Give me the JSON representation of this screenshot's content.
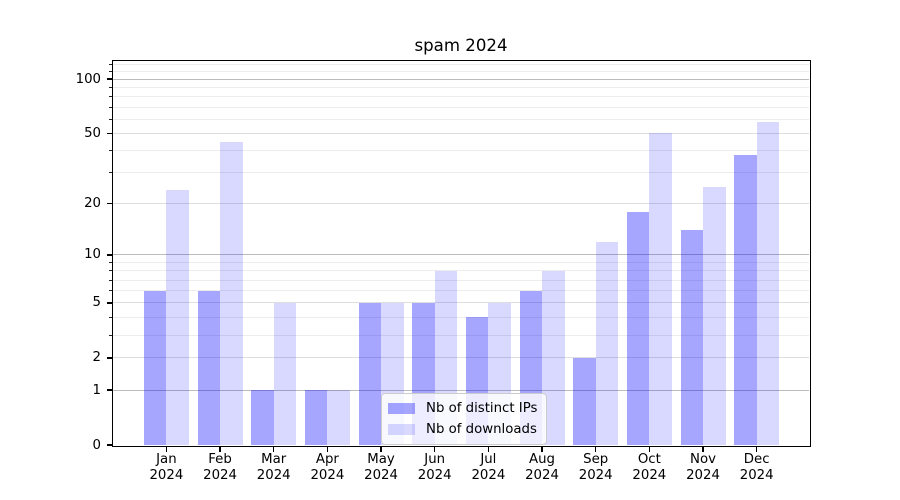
{
  "title": "spam 2024",
  "chart_data": {
    "type": "bar",
    "title": "spam 2024",
    "categories": [
      "Jan",
      "Feb",
      "Mar",
      "Apr",
      "May",
      "Jun",
      "Jul",
      "Aug",
      "Sep",
      "Oct",
      "Nov",
      "Dec"
    ],
    "year_label": "2024",
    "series": [
      {
        "name": "Nb of distinct IPs",
        "color": "rgba(0,0,255,0.35)",
        "color_hex": "#a6a6ff",
        "values": [
          6,
          6,
          1,
          1,
          5,
          5,
          4,
          6,
          2,
          18,
          14,
          38
        ]
      },
      {
        "name": "Nb of downloads",
        "color": "rgba(0,0,255,0.15)",
        "color_hex": "#d9d9ff",
        "values": [
          24,
          45,
          5,
          1,
          5,
          8,
          5,
          8,
          12,
          50,
          25,
          58
        ]
      }
    ],
    "xlabel": "",
    "ylabel": "",
    "yscale": "log1p",
    "yticks": [
      0,
      1,
      2,
      5,
      10,
      20,
      50,
      100
    ],
    "yticks_minor": [
      3,
      4,
      6,
      7,
      8,
      9,
      30,
      40,
      60,
      70,
      80,
      90,
      110,
      120
    ],
    "ylim": [
      0,
      126
    ],
    "grid": "both",
    "legend_position": "lower center",
    "background_color": "#ffffff",
    "grid_color_decade": "#bcbcbc",
    "grid_color_major": "#dedede",
    "grid_color_minor": "#ececec"
  }
}
